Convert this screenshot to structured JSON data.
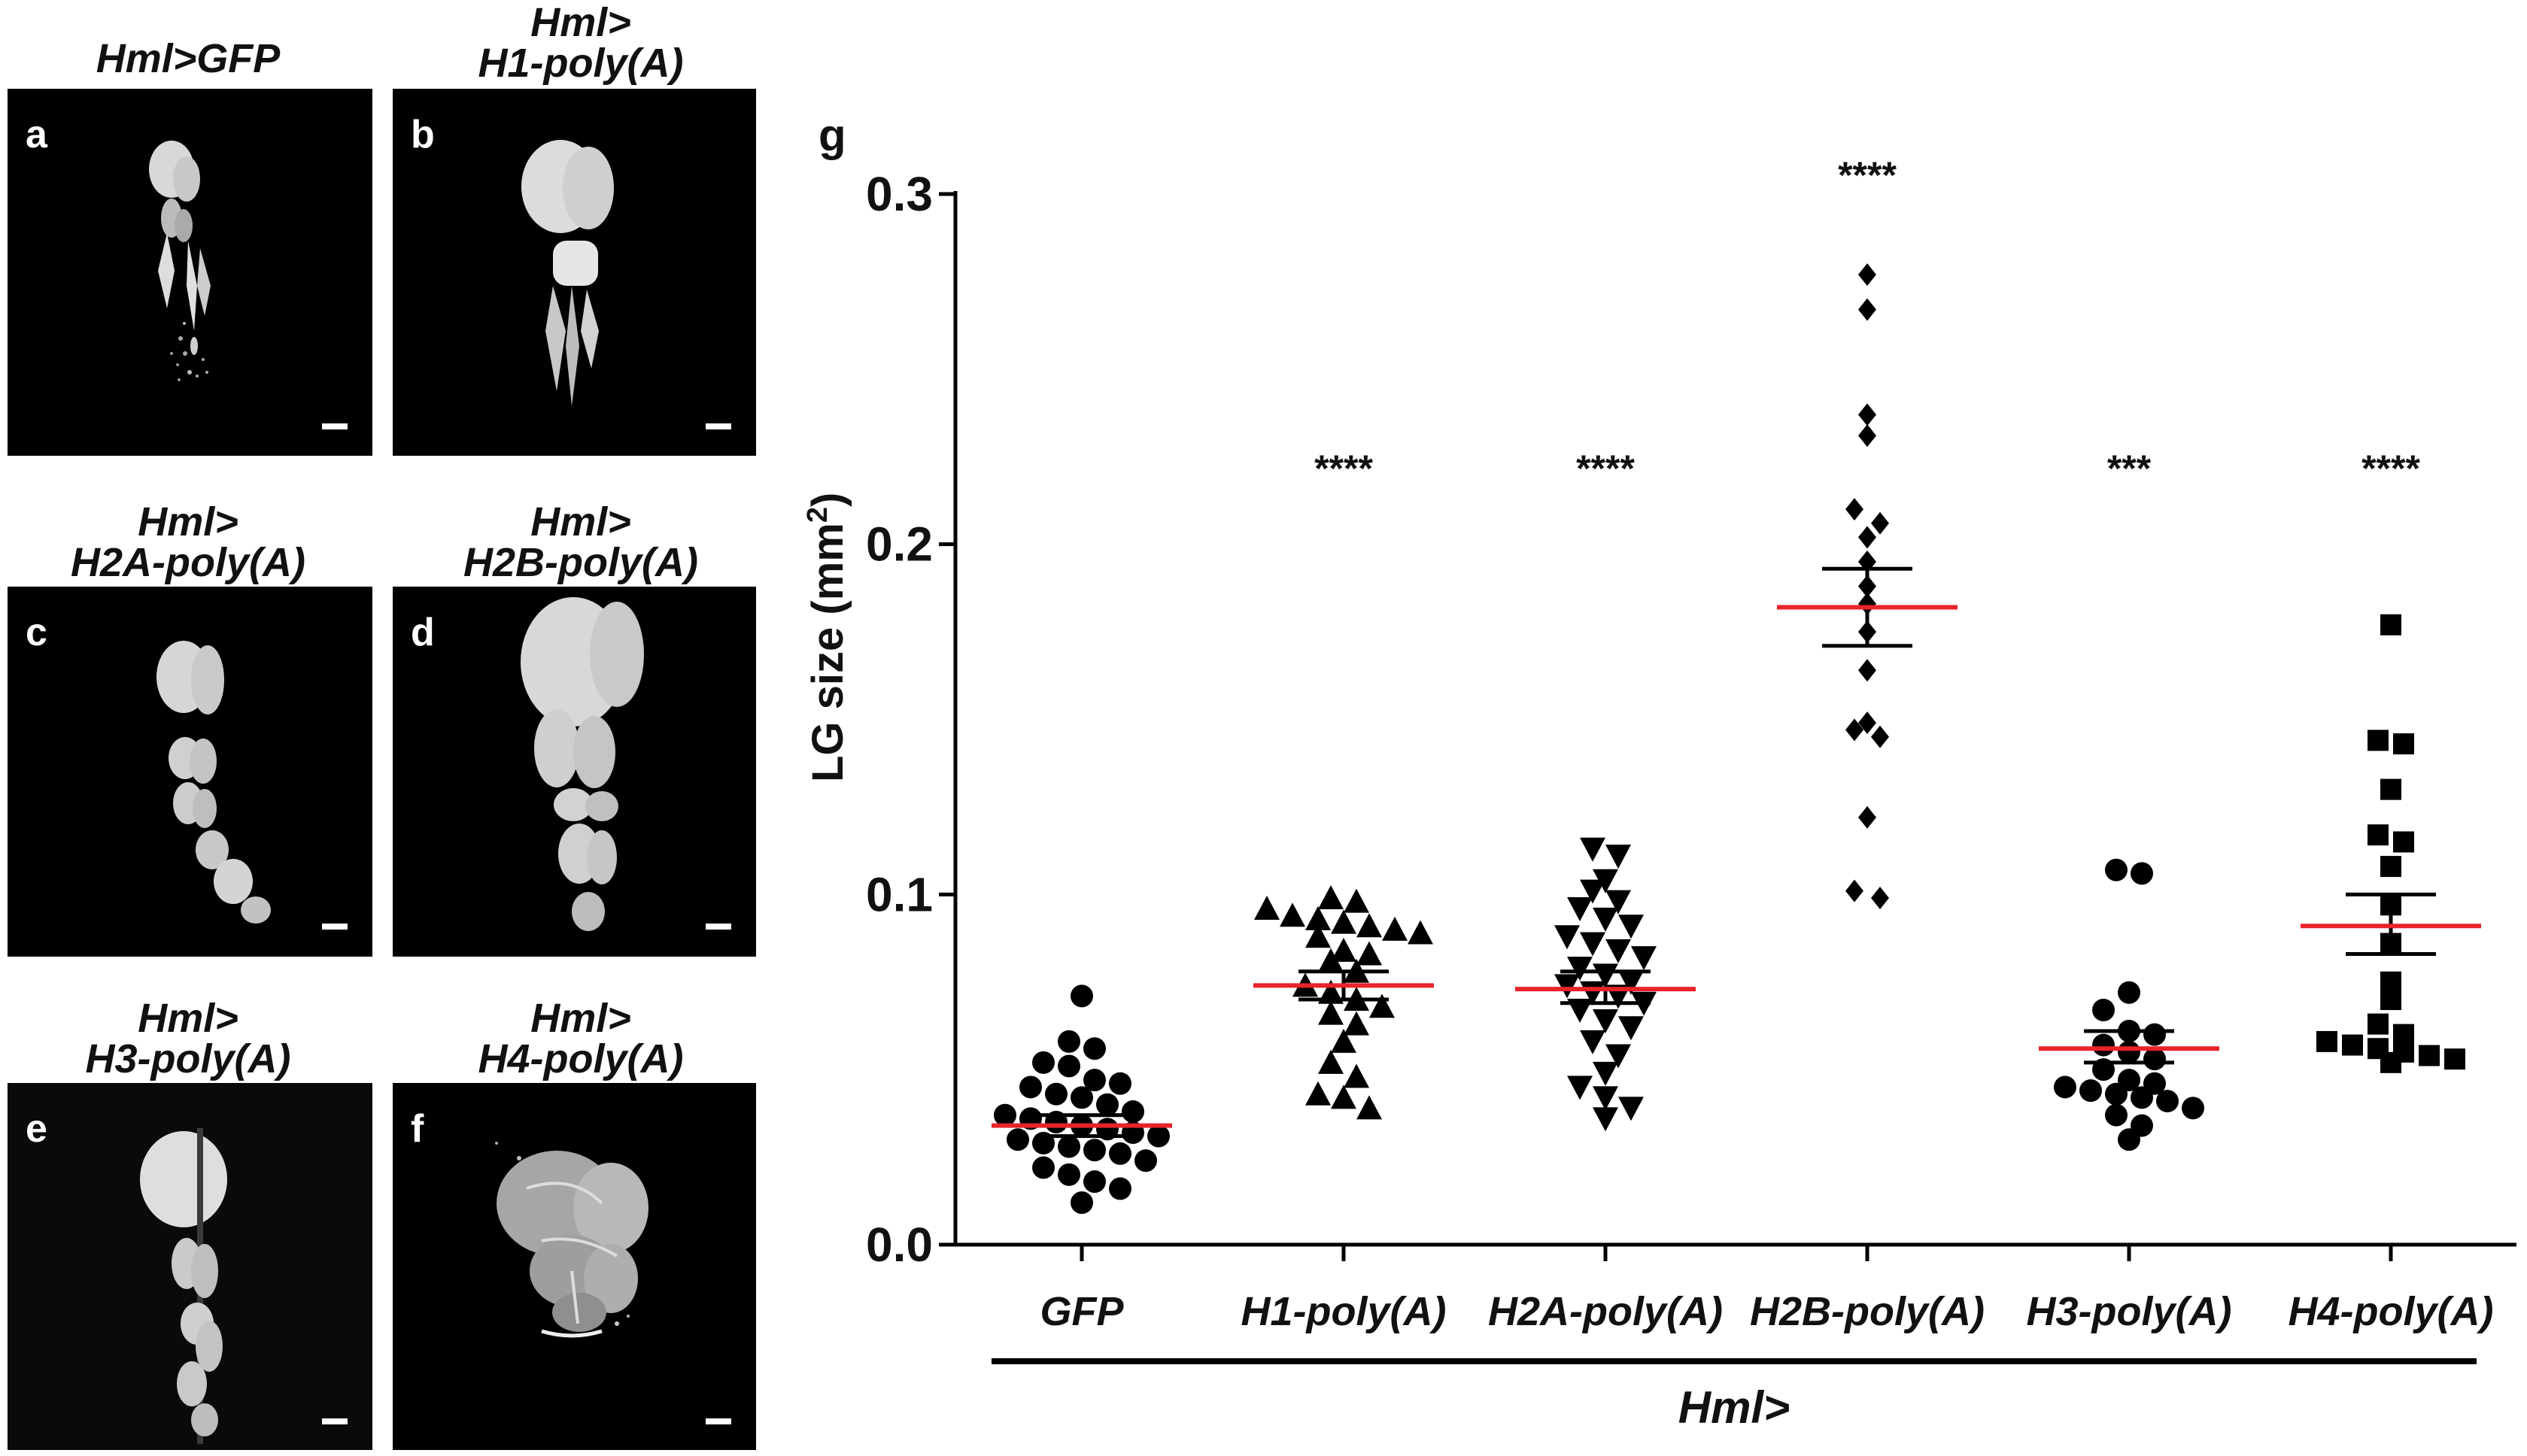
{
  "panels": [
    {
      "letter": "a",
      "title_line1": "",
      "title_line2": "Hml>GFP"
    },
    {
      "letter": "b",
      "title_line1": "Hml>",
      "title_line2": "H1-poly(A)"
    },
    {
      "letter": "c",
      "title_line1": "Hml>",
      "title_line2": "H2A-poly(A)"
    },
    {
      "letter": "d",
      "title_line1": "Hml>",
      "title_line2": "H2B-poly(A)"
    },
    {
      "letter": "e",
      "title_line1": "Hml>",
      "title_line2": "H3-poly(A)"
    },
    {
      "letter": "f",
      "title_line1": "Hml>",
      "title_line2": "H4-poly(A)"
    }
  ],
  "chart_data": {
    "type": "scatter",
    "panel_letter": "g",
    "ylabel": "LG size (mm",
    "ylabel_superscript": "2",
    "ylabel_close": ")",
    "ylim": [
      0,
      0.3
    ],
    "yticks": [
      {
        "value": 0.0,
        "label": "0.0"
      },
      {
        "value": 0.1,
        "label": "0.1"
      },
      {
        "value": 0.2,
        "label": "0.2"
      },
      {
        "value": 0.3,
        "label": "0.3"
      }
    ],
    "group_label": "Hml>",
    "categories": [
      "GFP",
      "H1-poly(A)",
      "H2A-poly(A)",
      "H2B-poly(A)",
      "H3-poly(A)",
      "H4-poly(A)"
    ],
    "colors": {
      "points": "#000000",
      "mean": "#e8232a",
      "sem": "#000000"
    },
    "series": [
      {
        "name": "GFP",
        "marker": "circle",
        "significance": "",
        "mean": 0.034,
        "sem_low": 0.031,
        "sem_high": 0.037,
        "values": [
          0.071,
          0.058,
          0.056,
          0.052,
          0.051,
          0.047,
          0.046,
          0.045,
          0.043,
          0.042,
          0.04,
          0.038,
          0.037,
          0.036,
          0.035,
          0.034,
          0.033,
          0.032,
          0.031,
          0.03,
          0.029,
          0.028,
          0.027,
          0.026,
          0.024,
          0.022,
          0.02,
          0.018,
          0.016,
          0.012
        ]
      },
      {
        "name": "H1-poly(A)",
        "marker": "triangle-up",
        "significance": "****",
        "mean": 0.074,
        "sem_low": 0.07,
        "sem_high": 0.078,
        "values": [
          0.099,
          0.098,
          0.096,
          0.094,
          0.093,
          0.092,
          0.091,
          0.09,
          0.089,
          0.088,
          0.084,
          0.083,
          0.081,
          0.078,
          0.074,
          0.072,
          0.07,
          0.068,
          0.066,
          0.063,
          0.058,
          0.052,
          0.048,
          0.043,
          0.042,
          0.039
        ]
      },
      {
        "name": "H2A-poly(A)",
        "marker": "triangle-down",
        "significance": "****",
        "mean": 0.073,
        "sem_low": 0.069,
        "sem_high": 0.078,
        "values": [
          0.113,
          0.111,
          0.104,
          0.101,
          0.098,
          0.096,
          0.093,
          0.091,
          0.088,
          0.086,
          0.084,
          0.082,
          0.079,
          0.077,
          0.075,
          0.074,
          0.072,
          0.071,
          0.069,
          0.067,
          0.064,
          0.062,
          0.058,
          0.054,
          0.049,
          0.045,
          0.042,
          0.039,
          0.036
        ]
      },
      {
        "name": "H2B-poly(A)",
        "marker": "diamond",
        "significance": "****",
        "mean": 0.182,
        "sem_low": 0.171,
        "sem_high": 0.193,
        "values": [
          0.277,
          0.267,
          0.237,
          0.231,
          0.21,
          0.206,
          0.202,
          0.195,
          0.188,
          0.183,
          0.175,
          0.164,
          0.149,
          0.147,
          0.145,
          0.122,
          0.101,
          0.099
        ]
      },
      {
        "name": "H3-poly(A)",
        "marker": "circle",
        "significance": "***",
        "mean": 0.056,
        "sem_low": 0.052,
        "sem_high": 0.061,
        "values": [
          0.107,
          0.106,
          0.072,
          0.067,
          0.061,
          0.06,
          0.057,
          0.055,
          0.053,
          0.05,
          0.047,
          0.046,
          0.045,
          0.044,
          0.043,
          0.042,
          0.041,
          0.039,
          0.037,
          0.034,
          0.03
        ]
      },
      {
        "name": "H4-poly(A)",
        "marker": "square",
        "significance": "****",
        "mean": 0.091,
        "sem_low": 0.083,
        "sem_high": 0.1,
        "values": [
          0.177,
          0.144,
          0.143,
          0.13,
          0.117,
          0.115,
          0.108,
          0.097,
          0.086,
          0.075,
          0.07,
          0.063,
          0.06,
          0.058,
          0.057,
          0.056,
          0.055,
          0.054,
          0.053,
          0.052
        ]
      }
    ]
  }
}
